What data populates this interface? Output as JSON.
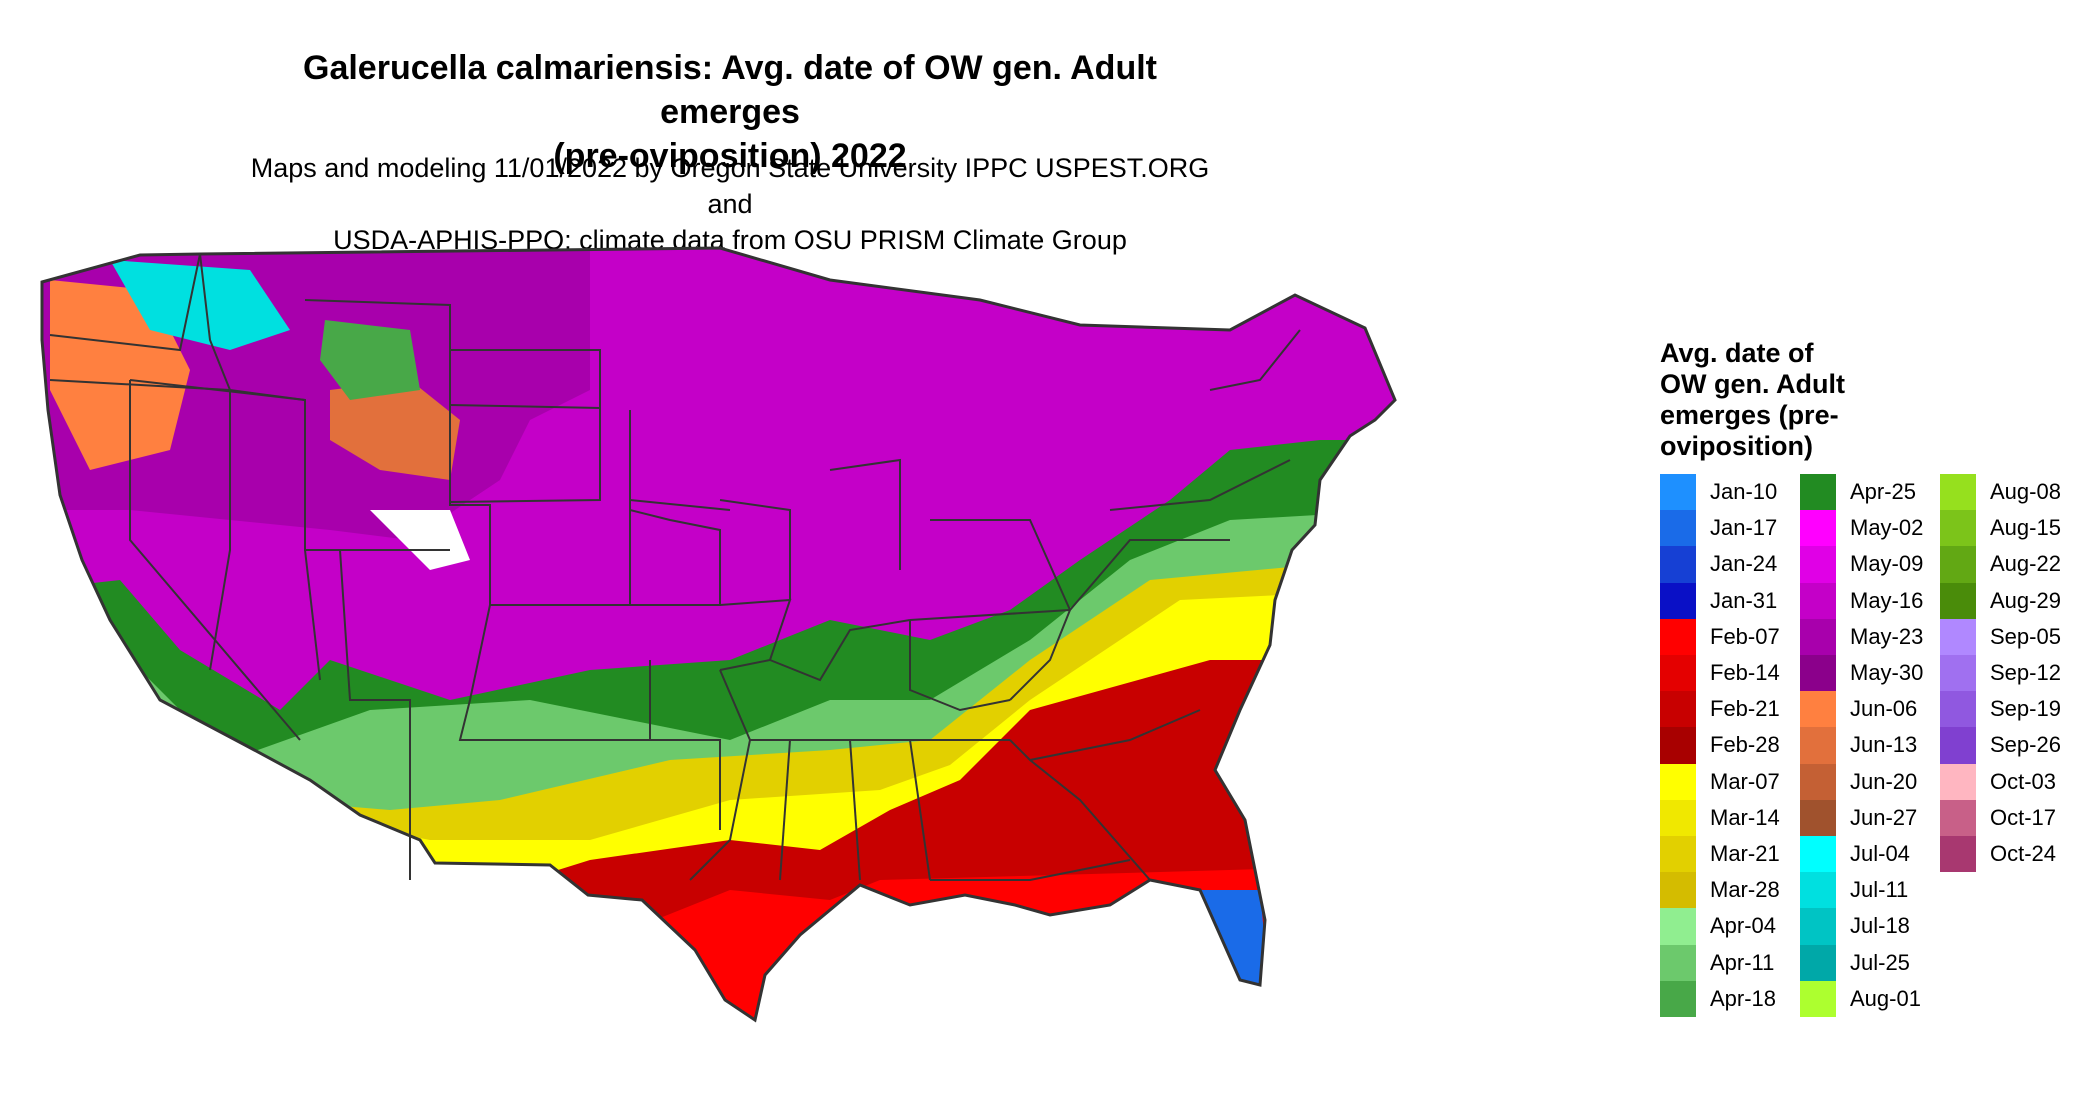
{
  "title": {
    "line1": "Galerucella calmariensis: Avg. date of OW gen. Adult emerges",
    "line2": "(pre-oviposition) 2022"
  },
  "subtitle": {
    "line1": "Maps and modeling 11/01/2022 by Oregon State University IPPC USPEST.ORG and",
    "line2": "USDA-APHIS-PPQ; climate data from OSU PRISM Climate Group"
  },
  "legend": {
    "title_lines": [
      "Avg. date of",
      "OW gen. Adult",
      "emerges (pre-",
      "oviposition)"
    ],
    "columns": [
      [
        {
          "label": "Jan-10",
          "color": "#1e90ff"
        },
        {
          "label": "Jan-17",
          "color": "#1a6be8"
        },
        {
          "label": "Jan-24",
          "color": "#1640d4"
        },
        {
          "label": "Jan-31",
          "color": "#0a10c6"
        },
        {
          "label": "Feb-07",
          "color": "#ff0000"
        },
        {
          "label": "Feb-14",
          "color": "#e40000"
        },
        {
          "label": "Feb-21",
          "color": "#c80000"
        },
        {
          "label": "Feb-28",
          "color": "#a80000"
        },
        {
          "label": "Mar-07",
          "color": "#ffff00"
        },
        {
          "label": "Mar-14",
          "color": "#f0e800"
        },
        {
          "label": "Mar-21",
          "color": "#e2d000"
        },
        {
          "label": "Mar-28",
          "color": "#d4bc00"
        },
        {
          "label": "Apr-04",
          "color": "#90ee90"
        },
        {
          "label": "Apr-11",
          "color": "#6cc96c"
        },
        {
          "label": "Apr-18",
          "color": "#48a848"
        }
      ],
      [
        {
          "label": "Apr-25",
          "color": "#228b22"
        },
        {
          "label": "May-02",
          "color": "#ff00ff"
        },
        {
          "label": "May-09",
          "color": "#e000e6"
        },
        {
          "label": "May-16",
          "color": "#c400c8"
        },
        {
          "label": "May-23",
          "color": "#a800ac"
        },
        {
          "label": "May-30",
          "color": "#8b008b"
        },
        {
          "label": "Jun-06",
          "color": "#ff8040"
        },
        {
          "label": "Jun-13",
          "color": "#e2703c"
        },
        {
          "label": "Jun-20",
          "color": "#c46034"
        },
        {
          "label": "Jun-27",
          "color": "#a0522d"
        },
        {
          "label": "Jul-04",
          "color": "#00ffff"
        },
        {
          "label": "Jul-11",
          "color": "#00e0e0"
        },
        {
          "label": "Jul-18",
          "color": "#00c4c4"
        },
        {
          "label": "Jul-25",
          "color": "#00a8a8"
        },
        {
          "label": "Aug-01",
          "color": "#adff2f"
        }
      ],
      [
        {
          "label": "Aug-08",
          "color": "#96e01e"
        },
        {
          "label": "Aug-15",
          "color": "#7cc41a"
        },
        {
          "label": "Aug-22",
          "color": "#62a814"
        },
        {
          "label": "Aug-29",
          "color": "#4a8c0a"
        },
        {
          "label": "Sep-05",
          "color": "#b088ff"
        },
        {
          "label": "Sep-12",
          "color": "#a070f0"
        },
        {
          "label": "Sep-19",
          "color": "#9058e0"
        },
        {
          "label": "Sep-26",
          "color": "#8040d0"
        },
        {
          "label": "Oct-03",
          "color": "#ffb6c1"
        },
        {
          "label": "Oct-17",
          "color": "#c86088"
        },
        {
          "label": "Oct-24",
          "color": "#a83870"
        }
      ]
    ]
  }
}
